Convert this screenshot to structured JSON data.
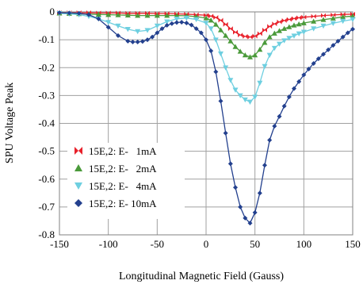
{
  "chart_data": {
    "type": "line",
    "xlabel": "Longitudinal Magnetic Field (Gauss)",
    "ylabel": "SPU Voltage Peak",
    "xlim": [
      -150,
      150
    ],
    "ylim": [
      -0.8,
      0
    ],
    "xticks": [
      "-150",
      "-100",
      "-50",
      "0",
      "50",
      "100",
      "150"
    ],
    "yticks": [
      "0",
      "-0.1",
      "-0.2",
      "-0.3",
      "-0.4",
      "-0.5",
      "-0.6",
      "-0.7",
      "-0.8"
    ],
    "grid": true,
    "legend_position": "bottom-left",
    "series": [
      {
        "name": "15E,2: E-   1mA",
        "color": "#e8202a",
        "marker": "bowtie",
        "points": [
          [
            -150,
            -0.003
          ],
          [
            -140,
            -0.003
          ],
          [
            -130,
            -0.003
          ],
          [
            -120,
            -0.003
          ],
          [
            -110,
            -0.004
          ],
          [
            -100,
            -0.004
          ],
          [
            -90,
            -0.004
          ],
          [
            -80,
            -0.005
          ],
          [
            -70,
            -0.005
          ],
          [
            -60,
            -0.005
          ],
          [
            -50,
            -0.006
          ],
          [
            -40,
            -0.006
          ],
          [
            -30,
            -0.007
          ],
          [
            -20,
            -0.008
          ],
          [
            -10,
            -0.01
          ],
          [
            0,
            -0.012
          ],
          [
            5,
            -0.015
          ],
          [
            10,
            -0.02
          ],
          [
            15,
            -0.03
          ],
          [
            20,
            -0.045
          ],
          [
            25,
            -0.06
          ],
          [
            30,
            -0.073
          ],
          [
            35,
            -0.083
          ],
          [
            40,
            -0.088
          ],
          [
            45,
            -0.09
          ],
          [
            50,
            -0.087
          ],
          [
            55,
            -0.078
          ],
          [
            60,
            -0.065
          ],
          [
            65,
            -0.052
          ],
          [
            70,
            -0.043
          ],
          [
            75,
            -0.036
          ],
          [
            80,
            -0.031
          ],
          [
            85,
            -0.027
          ],
          [
            90,
            -0.024
          ],
          [
            95,
            -0.021
          ],
          [
            100,
            -0.019
          ],
          [
            110,
            -0.016
          ],
          [
            120,
            -0.013
          ],
          [
            130,
            -0.011
          ],
          [
            140,
            -0.009
          ],
          [
            150,
            -0.008
          ]
        ]
      },
      {
        "name": "15E,2: E-   2mA",
        "color": "#4a9a3a",
        "marker": "triangle-up",
        "points": [
          [
            -150,
            -0.005
          ],
          [
            -140,
            -0.006
          ],
          [
            -130,
            -0.007
          ],
          [
            -120,
            -0.008
          ],
          [
            -110,
            -0.009
          ],
          [
            -100,
            -0.01
          ],
          [
            -90,
            -0.011
          ],
          [
            -80,
            -0.012
          ],
          [
            -70,
            -0.013
          ],
          [
            -60,
            -0.013
          ],
          [
            -50,
            -0.013
          ],
          [
            -40,
            -0.013
          ],
          [
            -30,
            -0.013
          ],
          [
            -20,
            -0.014
          ],
          [
            -10,
            -0.017
          ],
          [
            0,
            -0.022
          ],
          [
            5,
            -0.03
          ],
          [
            10,
            -0.045
          ],
          [
            15,
            -0.065
          ],
          [
            20,
            -0.085
          ],
          [
            25,
            -0.105
          ],
          [
            30,
            -0.125
          ],
          [
            35,
            -0.142
          ],
          [
            40,
            -0.155
          ],
          [
            45,
            -0.162
          ],
          [
            50,
            -0.155
          ],
          [
            55,
            -0.135
          ],
          [
            60,
            -0.11
          ],
          [
            65,
            -0.09
          ],
          [
            70,
            -0.077
          ],
          [
            75,
            -0.068
          ],
          [
            80,
            -0.06
          ],
          [
            85,
            -0.054
          ],
          [
            90,
            -0.048
          ],
          [
            95,
            -0.044
          ],
          [
            100,
            -0.04
          ],
          [
            110,
            -0.034
          ],
          [
            120,
            -0.028
          ],
          [
            130,
            -0.023
          ],
          [
            140,
            -0.018
          ],
          [
            150,
            -0.015
          ]
        ]
      },
      {
        "name": "15E,2: E-   4mA",
        "color": "#6ecfe0",
        "marker": "triangle-down",
        "points": [
          [
            -150,
            -0.005
          ],
          [
            -140,
            -0.007
          ],
          [
            -130,
            -0.01
          ],
          [
            -120,
            -0.016
          ],
          [
            -110,
            -0.025
          ],
          [
            -100,
            -0.037
          ],
          [
            -90,
            -0.05
          ],
          [
            -80,
            -0.062
          ],
          [
            -70,
            -0.07
          ],
          [
            -60,
            -0.066
          ],
          [
            -50,
            -0.05
          ],
          [
            -40,
            -0.035
          ],
          [
            -30,
            -0.025
          ],
          [
            -20,
            -0.022
          ],
          [
            -10,
            -0.027
          ],
          [
            0,
            -0.04
          ],
          [
            5,
            -0.06
          ],
          [
            10,
            -0.1
          ],
          [
            15,
            -0.15
          ],
          [
            20,
            -0.2
          ],
          [
            25,
            -0.245
          ],
          [
            30,
            -0.28
          ],
          [
            35,
            -0.3
          ],
          [
            40,
            -0.315
          ],
          [
            45,
            -0.323
          ],
          [
            50,
            -0.305
          ],
          [
            55,
            -0.255
          ],
          [
            60,
            -0.195
          ],
          [
            65,
            -0.155
          ],
          [
            70,
            -0.13
          ],
          [
            75,
            -0.115
          ],
          [
            80,
            -0.103
          ],
          [
            85,
            -0.094
          ],
          [
            90,
            -0.086
          ],
          [
            95,
            -0.078
          ],
          [
            100,
            -0.072
          ],
          [
            110,
            -0.06
          ],
          [
            120,
            -0.05
          ],
          [
            130,
            -0.041
          ],
          [
            140,
            -0.033
          ],
          [
            150,
            -0.027
          ]
        ]
      },
      {
        "name": "15E,2: E- 10mA",
        "color": "#23408e",
        "marker": "diamond",
        "points": [
          [
            -150,
            -0.003
          ],
          [
            -140,
            -0.004
          ],
          [
            -130,
            -0.005
          ],
          [
            -120,
            -0.01
          ],
          [
            -110,
            -0.025
          ],
          [
            -100,
            -0.055
          ],
          [
            -90,
            -0.085
          ],
          [
            -80,
            -0.105
          ],
          [
            -75,
            -0.108
          ],
          [
            -70,
            -0.108
          ],
          [
            -65,
            -0.106
          ],
          [
            -60,
            -0.1
          ],
          [
            -55,
            -0.09
          ],
          [
            -50,
            -0.075
          ],
          [
            -45,
            -0.06
          ],
          [
            -40,
            -0.048
          ],
          [
            -35,
            -0.042
          ],
          [
            -30,
            -0.038
          ],
          [
            -25,
            -0.037
          ],
          [
            -20,
            -0.04
          ],
          [
            -15,
            -0.047
          ],
          [
            -10,
            -0.06
          ],
          [
            -5,
            -0.075
          ],
          [
            0,
            -0.1
          ],
          [
            5,
            -0.14
          ],
          [
            10,
            -0.215
          ],
          [
            15,
            -0.32
          ],
          [
            20,
            -0.435
          ],
          [
            25,
            -0.545
          ],
          [
            30,
            -0.63
          ],
          [
            35,
            -0.7
          ],
          [
            40,
            -0.74
          ],
          [
            45,
            -0.758
          ],
          [
            50,
            -0.72
          ],
          [
            55,
            -0.65
          ],
          [
            60,
            -0.55
          ],
          [
            65,
            -0.46
          ],
          [
            70,
            -0.41
          ],
          [
            75,
            -0.375
          ],
          [
            80,
            -0.338
          ],
          [
            85,
            -0.305
          ],
          [
            90,
            -0.275
          ],
          [
            95,
            -0.25
          ],
          [
            100,
            -0.226
          ],
          [
            105,
            -0.205
          ],
          [
            110,
            -0.185
          ],
          [
            115,
            -0.168
          ],
          [
            120,
            -0.152
          ],
          [
            125,
            -0.136
          ],
          [
            130,
            -0.12
          ],
          [
            135,
            -0.105
          ],
          [
            140,
            -0.09
          ],
          [
            145,
            -0.075
          ],
          [
            150,
            -0.062
          ]
        ]
      }
    ]
  }
}
